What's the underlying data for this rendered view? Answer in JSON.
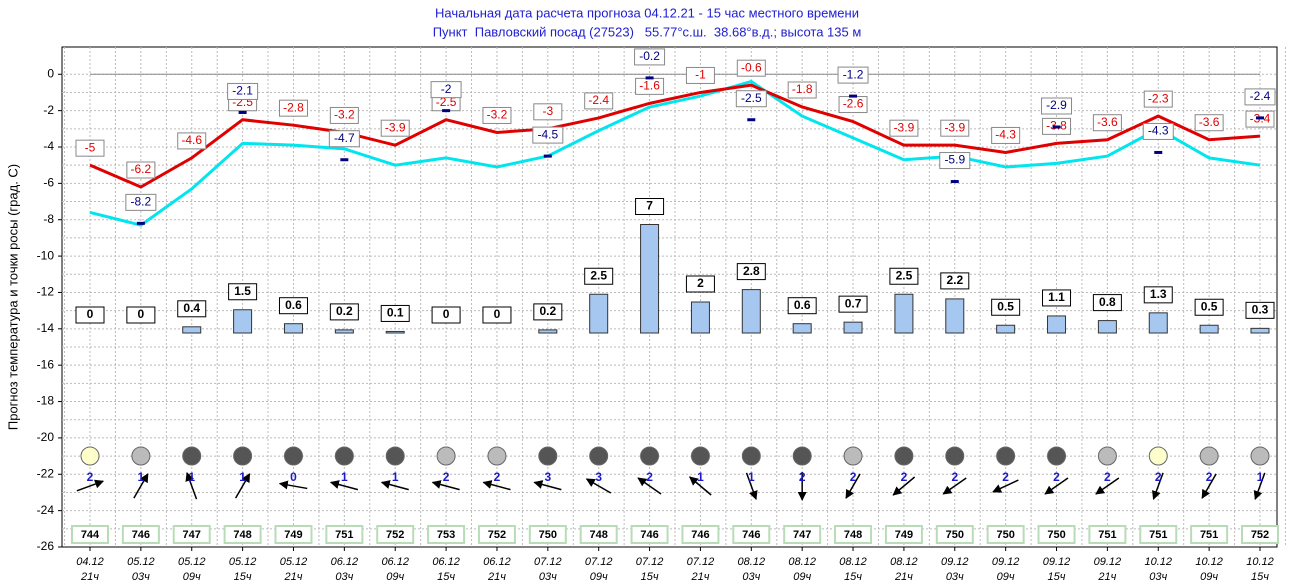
{
  "chart_data": {
    "type": "line",
    "title": "Начальная дата расчета прогноза 04.12.21 - 15 час местного времени",
    "subtitle": "Пункт  Павловский посад (27523)   55.77°с.ш.  38.68°в.д.; высота 135 м",
    "y_label": "Прогноз температура и точки росы (град. С)",
    "categories": [
      [
        "04.12",
        "21ч"
      ],
      [
        "05.12",
        "03ч"
      ],
      [
        "05.12",
        "09ч"
      ],
      [
        "05.12",
        "15ч"
      ],
      [
        "05.12",
        "21ч"
      ],
      [
        "06.12",
        "03ч"
      ],
      [
        "06.12",
        "09ч"
      ],
      [
        "06.12",
        "15ч"
      ],
      [
        "06.12",
        "21ч"
      ],
      [
        "07.12",
        "03ч"
      ],
      [
        "07.12",
        "09ч"
      ],
      [
        "07.12",
        "15ч"
      ],
      [
        "07.12",
        "21ч"
      ],
      [
        "08.12",
        "03ч"
      ],
      [
        "08.12",
        "09ч"
      ],
      [
        "08.12",
        "15ч"
      ],
      [
        "08.12",
        "21ч"
      ],
      [
        "09.12",
        "03ч"
      ],
      [
        "09.12",
        "09ч"
      ],
      [
        "09.12",
        "15ч"
      ],
      [
        "09.12",
        "21ч"
      ],
      [
        "10.12",
        "03ч"
      ],
      [
        "10.12",
        "09ч"
      ],
      [
        "10.12",
        "15ч"
      ]
    ],
    "ylim": [
      -26,
      1.5
    ],
    "yticks": [
      0,
      -2,
      -4,
      -6,
      -8,
      -10,
      -12,
      -14,
      -16,
      -18,
      -20,
      -22,
      -24,
      -26
    ],
    "grid": true,
    "series": [
      {
        "color": "#e00000",
        "values": [
          -5,
          -6.2,
          -4.6,
          -2.5,
          -2.8,
          -3.2,
          -3.9,
          -2.5,
          -3.2,
          -3,
          -2.4,
          -1.6,
          -1,
          -0.6,
          -1.8,
          -2.6,
          -3.9,
          -3.9,
          -4.3,
          -3.8,
          -3.6,
          -2.3,
          -3.6,
          -3.4
        ]
      },
      {
        "color": "#00e5ee",
        "values": [
          -7.6,
          -8.3,
          -6.3,
          -3.8,
          -3.9,
          -4.1,
          -5,
          -4.6,
          -5.1,
          -4.5,
          -3.1,
          -1.8,
          -1.2,
          -0.4,
          -2.3,
          -3.5,
          -4.7,
          -4.5,
          -5.1,
          -4.9,
          -4.5,
          -3,
          -4.6,
          -5
        ]
      },
      {
        "color": "#000080",
        "values": [
          null,
          -8.2,
          null,
          -2.1,
          null,
          -4.7,
          null,
          -2,
          null,
          -4.5,
          null,
          -0.2,
          null,
          -2.5,
          null,
          -1.2,
          null,
          -5.9,
          null,
          -2.9,
          null,
          -4.3,
          null,
          -2.4
        ]
      }
    ],
    "precipitation": {
      "color": "#a6c8f0",
      "values": [
        0,
        0,
        0.4,
        1.5,
        0.6,
        0.2,
        0.1,
        0,
        0,
        0.2,
        2.5,
        7,
        2,
        2.8,
        0.6,
        0.7,
        2.5,
        2.2,
        0.5,
        1.1,
        0.8,
        1.3,
        0.5,
        0.3
      ]
    },
    "cloud_colors": [
      "#ffffcc",
      "#bbbbbb",
      "#555555",
      "#555555",
      "#555555",
      "#555555",
      "#555555",
      "#bbbbbb",
      "#bbbbbb",
      "#555555",
      "#555555",
      "#555555",
      "#555555",
      "#555555",
      "#555555",
      "#bbbbbb",
      "#555555",
      "#555555",
      "#555555",
      "#555555",
      "#bbbbbb",
      "#ffffcc",
      "#bbbbbb",
      "#bbbbbb"
    ],
    "wind_speed": [
      2,
      1,
      1,
      1,
      0,
      1,
      1,
      2,
      2,
      3,
      3,
      2,
      1,
      1,
      2,
      2,
      2,
      2,
      2,
      2,
      2,
      2,
      2,
      1
    ],
    "wind_direction": [
      20,
      60,
      110,
      60,
      170,
      165,
      165,
      165,
      165,
      165,
      150,
      145,
      140,
      -70,
      -90,
      -120,
      -140,
      -145,
      -155,
      -145,
      -145,
      -110,
      -120,
      -110
    ],
    "pressure": [
      744,
      746,
      747,
      748,
      749,
      751,
      752,
      753,
      752,
      750,
      748,
      746,
      746,
      746,
      747,
      748,
      749,
      750,
      750,
      750,
      751,
      751,
      751,
      752
    ]
  }
}
